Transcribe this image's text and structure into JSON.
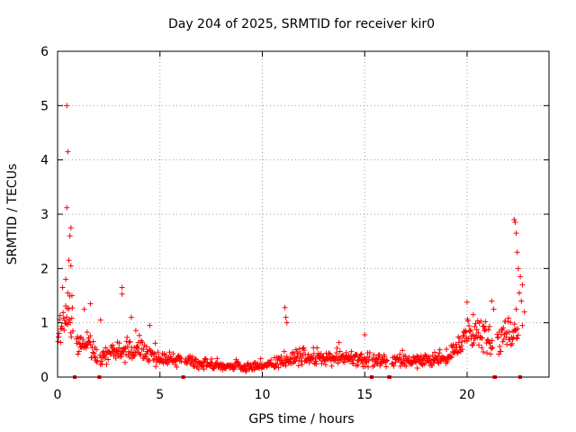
{
  "chart_data": {
    "type": "scatter",
    "title": "Day 204 of 2025, SRMTID for receiver kir0",
    "xlabel": "GPS time / hours",
    "ylabel": "SRMTID / TECUs",
    "xlim": [
      0,
      24
    ],
    "ylim": [
      0,
      6
    ],
    "xticks": [
      0,
      5,
      10,
      15,
      20
    ],
    "yticks": [
      0,
      1,
      2,
      3,
      4,
      5,
      6
    ],
    "grid": true,
    "marker": "+",
    "marker_color": "#ff0000",
    "series": [
      {
        "name": "SRMTID",
        "profile": [
          [
            0.0,
            0.9
          ],
          [
            0.3,
            1.0
          ],
          [
            0.6,
            1.0
          ],
          [
            1.0,
            0.55
          ],
          [
            1.5,
            0.7
          ],
          [
            2.0,
            0.3
          ],
          [
            2.5,
            0.45
          ],
          [
            3.0,
            0.55
          ],
          [
            3.5,
            0.5
          ],
          [
            4.0,
            0.55
          ],
          [
            4.5,
            0.45
          ],
          [
            5.0,
            0.35
          ],
          [
            6.0,
            0.3
          ],
          [
            7.0,
            0.25
          ],
          [
            8.0,
            0.2
          ],
          [
            9.0,
            0.18
          ],
          [
            10.0,
            0.2
          ],
          [
            11.0,
            0.3
          ],
          [
            12.0,
            0.38
          ],
          [
            13.0,
            0.35
          ],
          [
            14.0,
            0.35
          ],
          [
            15.0,
            0.32
          ],
          [
            16.0,
            0.28
          ],
          [
            17.0,
            0.28
          ],
          [
            18.0,
            0.3
          ],
          [
            19.0,
            0.35
          ],
          [
            19.5,
            0.5
          ],
          [
            20.0,
            0.85
          ],
          [
            21.0,
            0.8
          ],
          [
            21.5,
            0.65
          ],
          [
            22.0,
            0.85
          ],
          [
            22.6,
            0.8
          ]
        ],
        "spikes": [
          [
            0.45,
            5.0
          ],
          [
            0.5,
            4.15
          ],
          [
            0.45,
            3.12
          ],
          [
            0.65,
            2.75
          ],
          [
            0.6,
            2.6
          ],
          [
            0.55,
            2.15
          ],
          [
            0.65,
            2.05
          ],
          [
            0.4,
            1.8
          ],
          [
            0.5,
            1.55
          ],
          [
            0.7,
            1.5
          ],
          [
            1.3,
            1.25
          ],
          [
            1.6,
            1.35
          ],
          [
            2.1,
            1.05
          ],
          [
            3.15,
            1.65
          ],
          [
            3.15,
            1.53
          ],
          [
            3.6,
            1.1
          ],
          [
            4.5,
            0.95
          ],
          [
            11.1,
            1.28
          ],
          [
            11.15,
            1.1
          ],
          [
            11.2,
            1.0
          ],
          [
            15.0,
            0.78
          ],
          [
            20.0,
            1.38
          ],
          [
            20.3,
            1.15
          ],
          [
            21.2,
            1.4
          ],
          [
            21.3,
            1.25
          ],
          [
            22.3,
            2.9
          ],
          [
            22.35,
            2.85
          ],
          [
            22.4,
            2.65
          ],
          [
            22.45,
            2.3
          ],
          [
            22.5,
            2.0
          ],
          [
            22.6,
            1.85
          ],
          [
            22.7,
            1.7
          ],
          [
            22.55,
            1.55
          ],
          [
            22.65,
            1.4
          ],
          [
            22.4,
            1.25
          ],
          [
            22.8,
            1.2
          ],
          [
            22.7,
            0.95
          ]
        ],
        "gaps": [
          [
            0.75,
            0.9
          ],
          [
            1.95,
            2.05
          ],
          [
            6.05,
            6.2
          ],
          [
            15.25,
            15.35
          ],
          [
            16.1,
            16.3
          ],
          [
            21.25,
            21.45
          ],
          [
            22.5,
            22.65
          ]
        ]
      }
    ]
  }
}
